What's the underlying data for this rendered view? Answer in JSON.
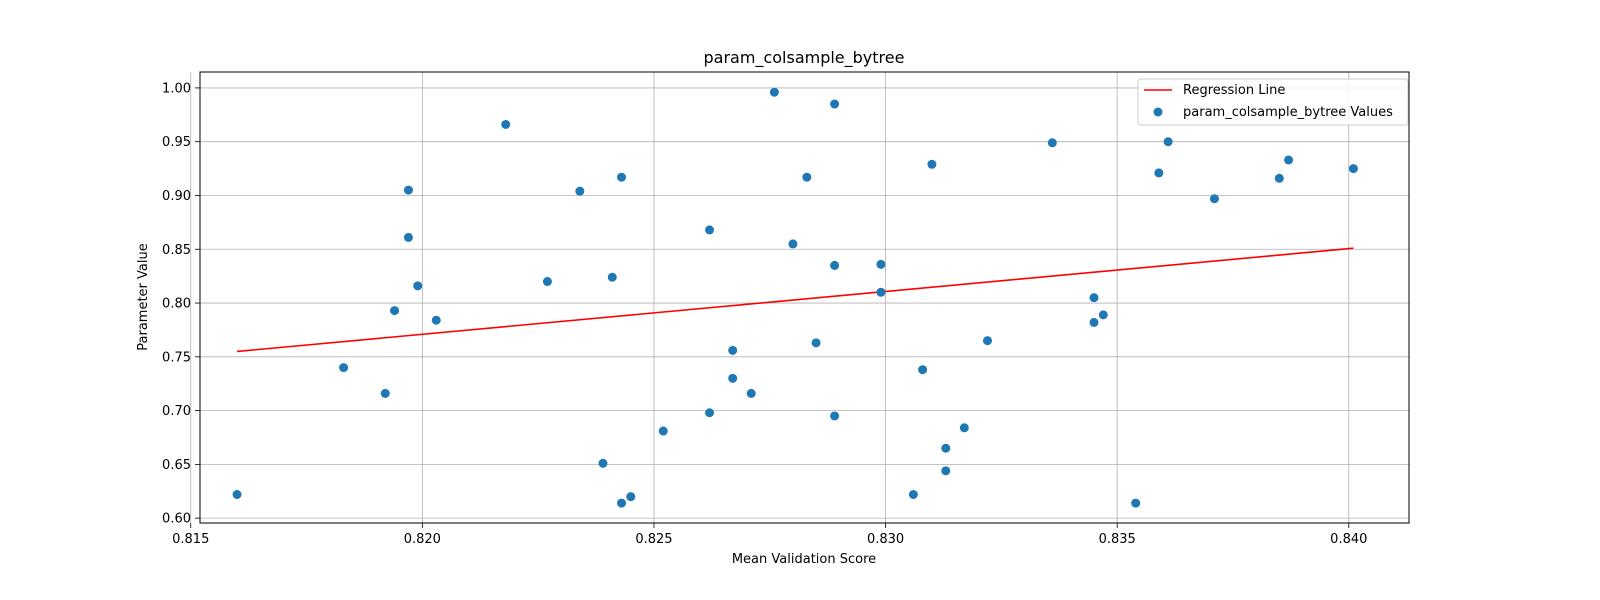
{
  "chart_data": {
    "type": "scatter",
    "title": "param_colsample_bytree",
    "xlabel": "Mean Validation Score",
    "ylabel": "Parameter Value",
    "xlim": [
      0.8152,
      0.8413
    ],
    "ylim": [
      0.5955,
      1.0148
    ],
    "xticks": [
      "0.815",
      "0.820",
      "0.825",
      "0.830",
      "0.835",
      "0.840"
    ],
    "xtick_values": [
      0.815,
      0.82,
      0.825,
      0.83,
      0.835,
      0.84
    ],
    "yticks": [
      "0.60",
      "0.65",
      "0.70",
      "0.75",
      "0.80",
      "0.85",
      "0.90",
      "0.95",
      "1.00"
    ],
    "ytick_values": [
      0.6,
      0.65,
      0.7,
      0.75,
      0.8,
      0.85,
      0.9,
      0.95,
      1.0
    ],
    "grid": true,
    "legend_position": "top-right",
    "colors": {
      "points": "#1f77b4",
      "regression": "#ff0000"
    },
    "series": [
      {
        "name": "param_colsample_bytree Values",
        "points": [
          [
            0.816,
            0.622
          ],
          [
            0.8183,
            0.74
          ],
          [
            0.8192,
            0.716
          ],
          [
            0.8194,
            0.793
          ],
          [
            0.8197,
            0.905
          ],
          [
            0.8197,
            0.861
          ],
          [
            0.8199,
            0.816
          ],
          [
            0.8203,
            0.784
          ],
          [
            0.8218,
            0.966
          ],
          [
            0.8227,
            0.82
          ],
          [
            0.8234,
            0.904
          ],
          [
            0.8239,
            0.651
          ],
          [
            0.8241,
            0.824
          ],
          [
            0.8243,
            0.917
          ],
          [
            0.8243,
            0.614
          ],
          [
            0.8245,
            0.62
          ],
          [
            0.8252,
            0.681
          ],
          [
            0.8262,
            0.868
          ],
          [
            0.8262,
            0.698
          ],
          [
            0.8267,
            0.756
          ],
          [
            0.8267,
            0.73
          ],
          [
            0.8271,
            0.716
          ],
          [
            0.8276,
            0.996
          ],
          [
            0.828,
            0.855
          ],
          [
            0.8283,
            0.917
          ],
          [
            0.8285,
            0.763
          ],
          [
            0.8289,
            0.985
          ],
          [
            0.8289,
            0.835
          ],
          [
            0.8289,
            0.695
          ],
          [
            0.8299,
            0.836
          ],
          [
            0.8299,
            0.81
          ],
          [
            0.8306,
            0.622
          ],
          [
            0.8308,
            0.738
          ],
          [
            0.831,
            0.929
          ],
          [
            0.8313,
            0.665
          ],
          [
            0.8313,
            0.644
          ],
          [
            0.8317,
            0.684
          ],
          [
            0.8322,
            0.765
          ],
          [
            0.8336,
            0.949
          ],
          [
            0.8345,
            0.805
          ],
          [
            0.8345,
            0.782
          ],
          [
            0.8347,
            0.789
          ],
          [
            0.8354,
            0.614
          ],
          [
            0.8359,
            0.921
          ],
          [
            0.8361,
            0.95
          ],
          [
            0.8371,
            0.897
          ],
          [
            0.8385,
            0.916
          ],
          [
            0.8387,
            0.933
          ],
          [
            0.8401,
            0.925
          ]
        ]
      },
      {
        "name": "Regression Line",
        "line": [
          [
            0.816,
            0.755
          ],
          [
            0.8401,
            0.851
          ]
        ]
      }
    ]
  }
}
